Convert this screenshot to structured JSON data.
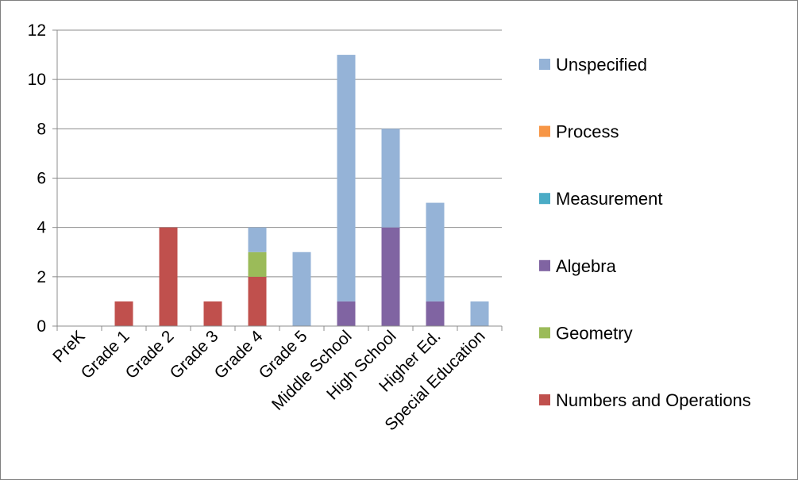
{
  "chart_data": {
    "type": "bar",
    "stacked": true,
    "categories": [
      "PreK",
      "Grade 1",
      "Grade 2",
      "Grade 3",
      "Grade 4",
      "Grade 5",
      "Middle School",
      "High School",
      "Higher Ed.",
      "Special Education"
    ],
    "series": [
      {
        "name": "Numbers and Operations",
        "color": "#C0504D",
        "values": [
          0,
          1,
          4,
          1,
          2,
          0,
          0,
          0,
          0,
          0
        ]
      },
      {
        "name": "Geometry",
        "color": "#9BBB59",
        "values": [
          0,
          0,
          0,
          0,
          1,
          0,
          0,
          0,
          0,
          0
        ]
      },
      {
        "name": "Algebra",
        "color": "#8064A2",
        "values": [
          0,
          0,
          0,
          0,
          0,
          0,
          1,
          4,
          1,
          0
        ]
      },
      {
        "name": "Measurement",
        "color": "#4BACC6",
        "values": [
          0,
          0,
          0,
          0,
          0,
          0,
          0,
          0,
          0,
          0
        ]
      },
      {
        "name": "Process",
        "color": "#F79646",
        "values": [
          0,
          0,
          0,
          0,
          0,
          0,
          0,
          0,
          0,
          0
        ]
      },
      {
        "name": "Unspecified",
        "color": "#95B3D7",
        "values": [
          0,
          0,
          0,
          0,
          1,
          3,
          10,
          4,
          4,
          1
        ]
      }
    ],
    "legend_order": [
      "Unspecified",
      "Process",
      "Measurement",
      "Algebra",
      "Geometry",
      "Numbers and Operations"
    ],
    "yticks": [
      "0",
      "2",
      "4",
      "6",
      "8",
      "10",
      "12"
    ],
    "ylim": [
      0,
      12
    ],
    "grid": true,
    "legend_position": "right"
  }
}
